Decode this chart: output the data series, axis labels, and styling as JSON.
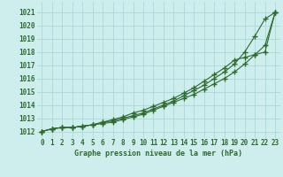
{
  "x": [
    0,
    1,
    2,
    3,
    4,
    5,
    6,
    7,
    8,
    9,
    10,
    11,
    12,
    13,
    14,
    15,
    16,
    17,
    18,
    19,
    20,
    21,
    22,
    23
  ],
  "series1": [
    1012.0,
    1012.2,
    1012.3,
    1012.3,
    1012.4,
    1012.5,
    1012.6,
    1012.7,
    1012.9,
    1013.1,
    1013.3,
    1013.6,
    1013.9,
    1014.2,
    1014.5,
    1014.8,
    1015.2,
    1015.6,
    1016.0,
    1016.5,
    1017.1,
    1017.8,
    1018.5,
    1021.0
  ],
  "series2": [
    1012.0,
    1012.2,
    1012.3,
    1012.3,
    1012.4,
    1012.5,
    1012.7,
    1012.8,
    1013.0,
    1013.2,
    1013.4,
    1013.7,
    1014.0,
    1014.3,
    1014.7,
    1015.1,
    1015.5,
    1016.0,
    1016.5,
    1017.1,
    1018.0,
    1019.2,
    1020.5,
    1021.0
  ],
  "series3": [
    1012.0,
    1012.2,
    1012.3,
    1012.3,
    1012.4,
    1012.5,
    1012.7,
    1012.9,
    1013.1,
    1013.4,
    1013.6,
    1013.9,
    1014.2,
    1014.5,
    1014.9,
    1015.3,
    1015.8,
    1016.3,
    1016.8,
    1017.4,
    1017.6,
    1017.8,
    1018.0,
    1021.0
  ],
  "line_color": "#2d6a2d",
  "bg_color": "#ceeeed",
  "grid_color": "#a8d8d8",
  "ylabel_values": [
    1012,
    1013,
    1014,
    1015,
    1016,
    1017,
    1018,
    1019,
    1020,
    1021
  ],
  "xlabel_label": "Graphe pression niveau de la mer (hPa)",
  "ylim": [
    1011.5,
    1021.8
  ],
  "xlim": [
    -0.5,
    23.5
  ],
  "tick_fontsize": 5.5,
  "xlabel_fontsize": 6.0,
  "linewidth": 0.8,
  "markersize": 4.5,
  "markeredgewidth": 1.0
}
